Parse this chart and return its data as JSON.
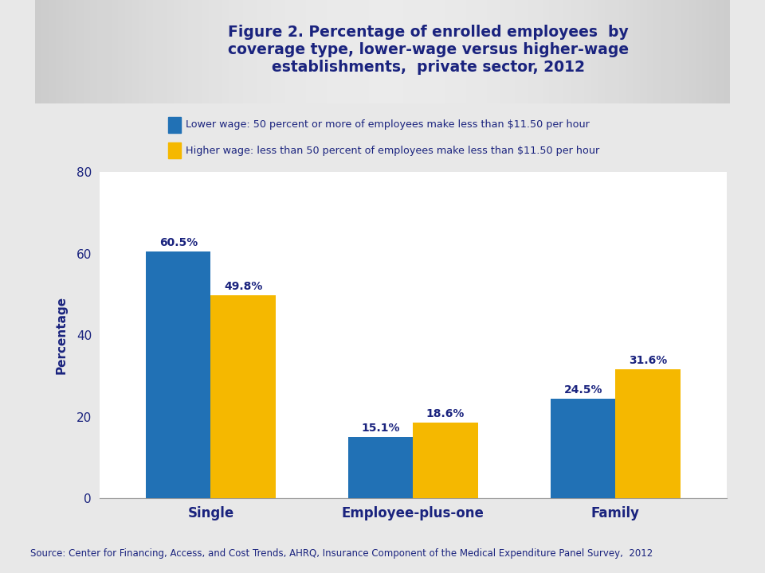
{
  "title": "Figure 2. Percentage of enrolled employees  by\ncoverage type, lower-wage versus higher-wage\nestablishments,  private sector, 2012",
  "categories": [
    "Single",
    "Employee-plus-one",
    "Family"
  ],
  "lower_wage_values": [
    60.5,
    15.1,
    24.5
  ],
  "higher_wage_values": [
    49.8,
    18.6,
    31.6
  ],
  "lower_wage_label": "Lower wage: 50 percent or more of employees make less than $11.50 per hour",
  "higher_wage_label": "Higher wage: less than 50 percent of employees make less than $11.50 per hour",
  "lower_wage_color": "#2171B5",
  "higher_wage_color": "#F5B800",
  "ylabel": "Percentage",
  "ylim": [
    0,
    80
  ],
  "yticks": [
    0,
    20,
    40,
    60,
    80
  ],
  "source_text": "Source: Center for Financing, Access, and Cost Trends, AHRQ, Insurance Component of the Medical Expenditure Panel Survey,  2012",
  "title_color": "#1A237E",
  "label_color": "#1A237E",
  "bar_width": 0.32,
  "background_color": "#E8E8E8",
  "plot_bg_color": "#FFFFFF",
  "header_bg_color": "#CCCCCC",
  "separator_color": "#999999"
}
